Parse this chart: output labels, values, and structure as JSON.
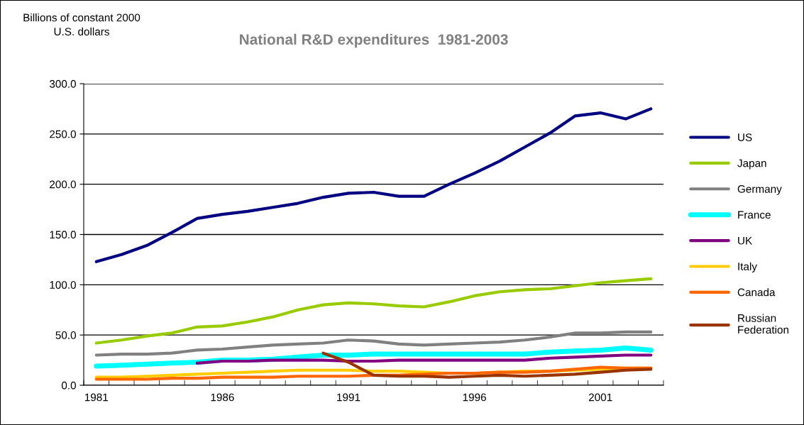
{
  "chart_data": {
    "type": "line",
    "title": "National R&D expenditures  1981-2003",
    "ylabel": "Billions of constant 2000\nU.S. dollars",
    "categories": [
      "1981",
      null,
      null,
      null,
      null,
      "1986",
      null,
      null,
      null,
      null,
      "1991",
      null,
      null,
      null,
      null,
      "1996",
      null,
      null,
      null,
      null,
      "2001",
      null,
      null
    ],
    "series": [
      {
        "name": "US",
        "color": "#000080",
        "values": [
          123,
          130,
          139,
          152,
          166,
          170,
          173,
          177,
          181,
          187,
          191,
          192,
          188,
          188,
          200,
          211,
          223,
          237,
          251,
          268,
          271,
          265,
          275
        ]
      },
      {
        "name": "Japan",
        "color": "#99cc00",
        "values": [
          42,
          45,
          49,
          52,
          58,
          59,
          63,
          68,
          75,
          80,
          82,
          81,
          79,
          78,
          83,
          89,
          93,
          95,
          96,
          99,
          102,
          104,
          106
        ]
      },
      {
        "name": "Germany",
        "color": "#808080",
        "values": [
          30,
          31,
          31,
          32,
          35,
          36,
          38,
          40,
          41,
          42,
          45,
          44,
          41,
          40,
          41,
          42,
          43,
          45,
          48,
          52,
          52,
          53,
          53
        ]
      },
      {
        "name": "France",
        "color": "#00ffff",
        "values": [
          19,
          20,
          21,
          22,
          23,
          25,
          25,
          26,
          28,
          30,
          30,
          31,
          31,
          31,
          31,
          31,
          31,
          31,
          33,
          34,
          35,
          37,
          35
        ]
      },
      {
        "name": "UK",
        "color": "#800080",
        "values": [
          null,
          null,
          null,
          null,
          22,
          24,
          24,
          25,
          25,
          25,
          24,
          24,
          25,
          25,
          25,
          25,
          25,
          25,
          27,
          28,
          29,
          30,
          30
        ]
      },
      {
        "name": "Italy",
        "color": "#ffcc00",
        "values": [
          8,
          8,
          9,
          10,
          11,
          12,
          13,
          14,
          15,
          15,
          15,
          14,
          14,
          13,
          12,
          12,
          13,
          14,
          14,
          15,
          16,
          17,
          17
        ]
      },
      {
        "name": "Canada",
        "color": "#ff6600",
        "values": [
          6,
          6,
          6,
          7,
          7,
          8,
          8,
          8,
          9,
          9,
          9,
          10,
          10,
          11,
          12,
          12,
          13,
          13,
          14,
          16,
          18,
          17,
          17
        ]
      },
      {
        "name": "Russian\nFederation",
        "color": "#993300",
        "values": [
          null,
          null,
          null,
          null,
          null,
          null,
          null,
          null,
          null,
          32,
          23,
          10,
          9,
          9,
          8,
          9,
          10,
          9,
          10,
          11,
          13,
          15,
          16
        ]
      }
    ],
    "ylim": [
      0,
      300
    ],
    "yticks": [
      {
        "value": 0,
        "label": "0.0"
      },
      {
        "value": 50,
        "label": "50.0"
      },
      {
        "value": 100,
        "label": "100.0"
      },
      {
        "value": 150,
        "label": "150.0"
      },
      {
        "value": 200,
        "label": "200.0"
      },
      {
        "value": 250,
        "label": "250.0"
      },
      {
        "value": 300,
        "label": "300.0"
      }
    ],
    "grid": "y",
    "legend": "right",
    "marker": "none",
    "line_style": "solid"
  }
}
